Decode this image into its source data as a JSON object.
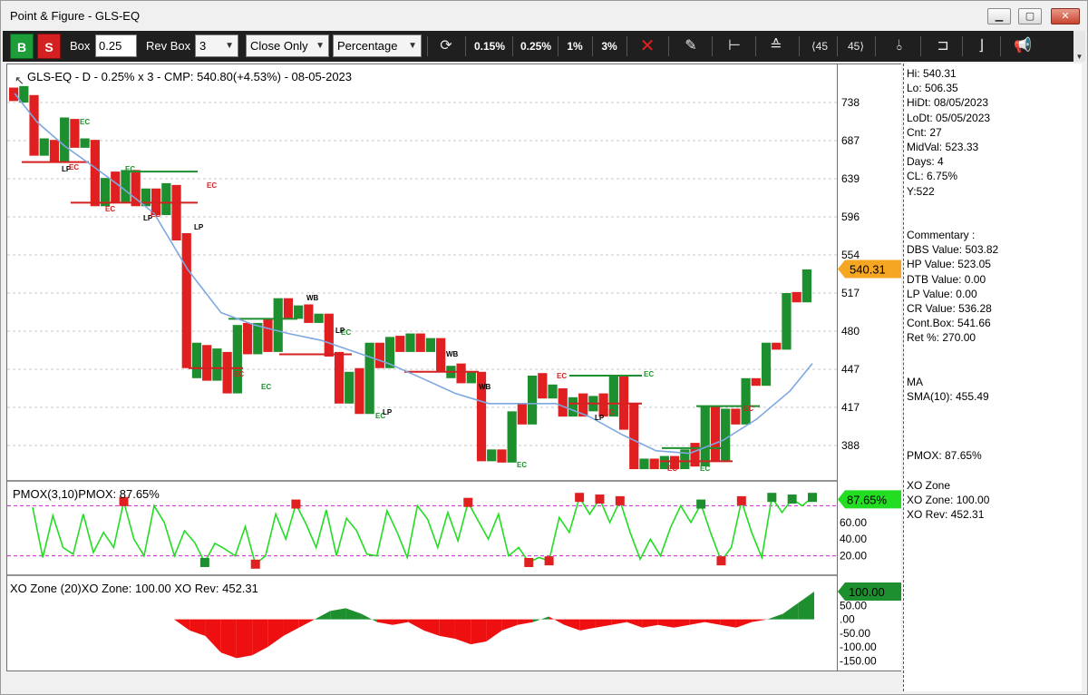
{
  "window": {
    "title": "Point & Figure - GLS-EQ"
  },
  "toolbar": {
    "buy_label": "B",
    "sell_label": "S",
    "box_label": "Box",
    "box_value": "0.25",
    "revbox_label": "Rev Box",
    "revbox_value": "3",
    "price_mode": "Close Only",
    "box_type": "Percentage",
    "preset_1": "0.15%",
    "preset_2": "0.25%",
    "preset_3": "1%",
    "preset_4": "3%",
    "angle_up": "45",
    "angle_down": "45"
  },
  "main_chart": {
    "header": "GLS-EQ - D - 0.25% x 3 - CMP: 540.80(+4.53%) - 08-05-2023",
    "price_ticks": [
      "738",
      "687",
      "639",
      "596",
      "554",
      "517",
      "480",
      "447",
      "417",
      "388"
    ],
    "price_tag": "540.31",
    "tags": [
      "LP",
      "EC",
      "EC",
      "EC",
      "LP",
      "EC",
      "LP",
      "EC",
      "EC",
      "EC",
      "EC",
      "WB",
      "EC",
      "LP",
      "EC",
      "LP",
      "WB",
      "WB",
      "EC",
      "EC",
      "LP",
      "EC",
      "EC",
      "EC",
      "EC",
      "EC"
    ]
  },
  "pmox": {
    "header": "PMOX(3,10)PMOX: 87.65%",
    "tag": "87.65%",
    "ticks": [
      "60.00",
      "40.00",
      "20.00"
    ]
  },
  "xozone": {
    "header": "XO Zone (20)XO Zone: 100.00 XO Rev: 452.31",
    "tag": "100.00",
    "ticks": [
      "50.00",
      ".00",
      "-50.00",
      "-100.00",
      "-150.00"
    ]
  },
  "info": {
    "stats": [
      "Hi: 540.31",
      "Lo: 506.35",
      "HiDt: 08/05/2023",
      "LoDt: 05/05/2023",
      "Cnt: 27",
      "MidVal: 523.33",
      "Days: 4",
      "CL: 6.75%",
      "Y:522"
    ],
    "commentary": [
      "Commentary :",
      "DBS Value:  503.82",
      "HP Value: 523.05",
      "DTB Value: 0.00",
      "LP Value: 0.00",
      "CR Value: 536.28",
      "Cont.Box: 541.66",
      "Ret %: 270.00"
    ],
    "ma": [
      "MA",
      "SMA(10): 455.49"
    ],
    "pmox": "PMOX: 87.65%",
    "xo": [
      "XO Zone",
      "XO Zone: 100.00",
      "XO Rev: 452.31"
    ]
  },
  "chart_data": {
    "type": "bar",
    "title": "GLS-EQ - D - 0.25% x 3 - CMP: 540.80(+4.53%) - 08-05-2023",
    "ylim": [
      365,
      770
    ],
    "y_ticks": [
      738,
      687,
      639,
      596,
      554,
      517,
      480,
      447,
      417,
      388
    ],
    "columns": [
      {
        "dir": "O",
        "lo": 740,
        "hi": 758
      },
      {
        "dir": "X",
        "lo": 738,
        "hi": 760
      },
      {
        "dir": "O",
        "lo": 668,
        "hi": 748
      },
      {
        "dir": "X",
        "lo": 668,
        "hi": 690
      },
      {
        "dir": "O",
        "lo": 660,
        "hi": 688
      },
      {
        "dir": "X",
        "lo": 660,
        "hi": 718
      },
      {
        "dir": "O",
        "lo": 678,
        "hi": 716
      },
      {
        "dir": "X",
        "lo": 678,
        "hi": 690
      },
      {
        "dir": "O",
        "lo": 608,
        "hi": 688
      },
      {
        "dir": "X",
        "lo": 608,
        "hi": 640
      },
      {
        "dir": "O",
        "lo": 612,
        "hi": 648
      },
      {
        "dir": "X",
        "lo": 612,
        "hi": 650
      },
      {
        "dir": "O",
        "lo": 608,
        "hi": 650
      },
      {
        "dir": "X",
        "lo": 608,
        "hi": 628
      },
      {
        "dir": "O",
        "lo": 598,
        "hi": 628
      },
      {
        "dir": "X",
        "lo": 598,
        "hi": 634
      },
      {
        "dir": "O",
        "lo": 570,
        "hi": 632
      },
      {
        "dir": "O",
        "lo": 448,
        "hi": 578
      },
      {
        "dir": "X",
        "lo": 440,
        "hi": 470
      },
      {
        "dir": "O",
        "lo": 438,
        "hi": 468
      },
      {
        "dir": "X",
        "lo": 438,
        "hi": 465
      },
      {
        "dir": "O",
        "lo": 428,
        "hi": 462
      },
      {
        "dir": "X",
        "lo": 428,
        "hi": 486
      },
      {
        "dir": "O",
        "lo": 460,
        "hi": 488
      },
      {
        "dir": "X",
        "lo": 460,
        "hi": 488
      },
      {
        "dir": "O",
        "lo": 462,
        "hi": 492
      },
      {
        "dir": "X",
        "lo": 462,
        "hi": 512
      },
      {
        "dir": "O",
        "lo": 492,
        "hi": 512
      },
      {
        "dir": "X",
        "lo": 492,
        "hi": 505
      },
      {
        "dir": "O",
        "lo": 488,
        "hi": 506
      },
      {
        "dir": "X",
        "lo": 488,
        "hi": 497
      },
      {
        "dir": "O",
        "lo": 458,
        "hi": 497
      },
      {
        "dir": "O",
        "lo": 420,
        "hi": 462
      },
      {
        "dir": "X",
        "lo": 420,
        "hi": 445
      },
      {
        "dir": "O",
        "lo": 412,
        "hi": 448
      },
      {
        "dir": "X",
        "lo": 412,
        "hi": 470
      },
      {
        "dir": "O",
        "lo": 448,
        "hi": 470
      },
      {
        "dir": "X",
        "lo": 448,
        "hi": 475
      },
      {
        "dir": "O",
        "lo": 462,
        "hi": 476
      },
      {
        "dir": "X",
        "lo": 462,
        "hi": 478
      },
      {
        "dir": "O",
        "lo": 462,
        "hi": 478
      },
      {
        "dir": "X",
        "lo": 462,
        "hi": 474
      },
      {
        "dir": "O",
        "lo": 445,
        "hi": 474
      },
      {
        "dir": "X",
        "lo": 440,
        "hi": 450
      },
      {
        "dir": "O",
        "lo": 436,
        "hi": 452
      },
      {
        "dir": "X",
        "lo": 436,
        "hi": 445
      },
      {
        "dir": "O",
        "lo": 376,
        "hi": 445
      },
      {
        "dir": "X",
        "lo": 376,
        "hi": 385
      },
      {
        "dir": "O",
        "lo": 375,
        "hi": 385
      },
      {
        "dir": "X",
        "lo": 375,
        "hi": 414
      },
      {
        "dir": "O",
        "lo": 404,
        "hi": 420
      },
      {
        "dir": "X",
        "lo": 404,
        "hi": 442
      },
      {
        "dir": "O",
        "lo": 424,
        "hi": 444
      },
      {
        "dir": "X",
        "lo": 424,
        "hi": 435
      },
      {
        "dir": "O",
        "lo": 410,
        "hi": 432
      },
      {
        "dir": "X",
        "lo": 410,
        "hi": 425
      },
      {
        "dir": "O",
        "lo": 410,
        "hi": 428
      },
      {
        "dir": "X",
        "lo": 414,
        "hi": 426
      },
      {
        "dir": "O",
        "lo": 410,
        "hi": 428
      },
      {
        "dir": "X",
        "lo": 410,
        "hi": 442
      },
      {
        "dir": "O",
        "lo": 400,
        "hi": 442
      },
      {
        "dir": "O",
        "lo": 370,
        "hi": 420
      },
      {
        "dir": "X",
        "lo": 370,
        "hi": 378
      },
      {
        "dir": "O",
        "lo": 370,
        "hi": 378
      },
      {
        "dir": "X",
        "lo": 370,
        "hi": 380
      },
      {
        "dir": "O",
        "lo": 370,
        "hi": 380
      },
      {
        "dir": "X",
        "lo": 370,
        "hi": 385
      },
      {
        "dir": "O",
        "lo": 372,
        "hi": 390
      },
      {
        "dir": "X",
        "lo": 372,
        "hi": 418
      },
      {
        "dir": "O",
        "lo": 376,
        "hi": 418
      },
      {
        "dir": "X",
        "lo": 376,
        "hi": 416
      },
      {
        "dir": "O",
        "lo": 404,
        "hi": 416
      },
      {
        "dir": "X",
        "lo": 404,
        "hi": 440
      },
      {
        "dir": "O",
        "lo": 434,
        "hi": 440
      },
      {
        "dir": "X",
        "lo": 434,
        "hi": 470
      },
      {
        "dir": "O",
        "lo": 464,
        "hi": 470
      },
      {
        "dir": "X",
        "lo": 464,
        "hi": 517
      },
      {
        "dir": "O",
        "lo": 508,
        "hi": 518
      },
      {
        "dir": "X",
        "lo": 508,
        "hi": 540
      }
    ],
    "sma": [
      [
        1,
        750
      ],
      [
        5,
        712
      ],
      [
        10,
        680
      ],
      [
        15,
        655
      ],
      [
        20,
        630
      ],
      [
        26,
        600
      ],
      [
        32,
        540
      ],
      [
        38,
        498
      ],
      [
        44,
        486
      ],
      [
        50,
        478
      ],
      [
        56,
        472
      ],
      [
        62,
        462
      ],
      [
        68,
        452
      ],
      [
        74,
        440
      ],
      [
        80,
        428
      ],
      [
        86,
        420
      ],
      [
        92,
        420
      ],
      [
        98,
        420
      ],
      [
        104,
        410
      ],
      [
        110,
        396
      ],
      [
        116,
        384
      ],
      [
        122,
        382
      ],
      [
        128,
        392
      ],
      [
        134,
        408
      ],
      [
        140,
        430
      ],
      [
        144,
        452
      ]
    ],
    "pmox_series": [
      {
        "name": "PMOX",
        "values": [
          78,
          18,
          68,
          30,
          22,
          70,
          24,
          48,
          30,
          85,
          40,
          20,
          80,
          60,
          20,
          50,
          36,
          12,
          35,
          28,
          20,
          55,
          10,
          20,
          70,
          40,
          82,
          58,
          30,
          75,
          20,
          65,
          50,
          22,
          20,
          74,
          48,
          18,
          80,
          64,
          30,
          72,
          38,
          84,
          62,
          40,
          70,
          20,
          30,
          12,
          18,
          14,
          66,
          48,
          90,
          70,
          88,
          60,
          86,
          48,
          16,
          40,
          20,
          54,
          80,
          60,
          82,
          46,
          14,
          30,
          86,
          48,
          18,
          90,
          72,
          88,
          80,
          90
        ]
      },
      {
        "name": "Signal",
        "values": []
      }
    ],
    "pmox_ylim": [
      0,
      100
    ],
    "xo_values": [
      0,
      -40,
      -60,
      -120,
      -140,
      -130,
      -100,
      -60,
      -30,
      0,
      30,
      40,
      20,
      -10,
      -20,
      -10,
      -40,
      -60,
      -70,
      -90,
      -80,
      -40,
      -20,
      -10,
      10,
      -20,
      -40,
      -30,
      -20,
      -10,
      -30,
      -20,
      -30,
      -20,
      -10,
      -20,
      -30,
      -10,
      0,
      20,
      60,
      100
    ],
    "xo_ylim": [
      -165,
      110
    ]
  }
}
